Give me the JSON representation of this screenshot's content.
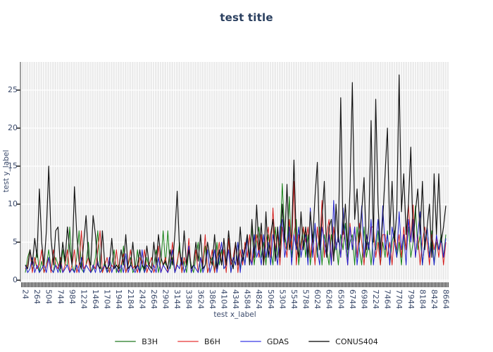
{
  "title": "test title",
  "colors": {
    "paper_bg": "#ffffff",
    "plot_bg": "#ebebeb",
    "grid": "#ffffff",
    "title": "#2a3f5f",
    "tick_label": "#3b4a6b",
    "axis_spine": "#9e9e9e",
    "tick_band_bg": "#c9c9c9",
    "tick_mark": "#4a4a4a"
  },
  "chart_data": {
    "type": "line",
    "title": "test title",
    "xlabel": "test x_label",
    "ylabel": "test y_label",
    "grid": {
      "vertical": true,
      "horizontal": true,
      "style": "white-on-gray"
    },
    "legend_position": "bottom-center",
    "x": {
      "start": 24,
      "step": 48,
      "count": 181
    },
    "x_axis": {
      "tick_start": 24,
      "tick_step": 240,
      "tick_labels": [
        24,
        264,
        504,
        744,
        984,
        1224,
        1464,
        1704,
        1944,
        2184,
        2424,
        2664,
        2904,
        3144,
        3384,
        3624,
        3864,
        4104,
        4344,
        4584,
        4824,
        5064,
        5304,
        5544,
        5784,
        6024,
        6264,
        6504,
        6744,
        6984,
        7224,
        7464,
        7704,
        7944,
        8184,
        8424,
        8664
      ],
      "label_rotation_deg": 90
    },
    "y_axis": {
      "ticks": [
        0,
        5,
        10,
        15,
        20,
        25
      ],
      "range": [
        -0.6,
        28.9
      ]
    },
    "series": [
      {
        "name": "B3H",
        "line_color": "#158015",
        "legend_color": "#74ab74",
        "line_width": 1,
        "values": [
          1,
          3,
          4,
          1.5,
          2,
          4,
          1,
          2.5,
          1,
          2,
          4,
          1.5,
          1,
          3,
          2,
          1,
          4,
          2,
          2,
          7,
          2,
          1,
          3,
          6.5,
          1.5,
          1,
          2,
          5,
          1,
          1.5,
          3,
          6.5,
          2,
          1,
          2.5,
          1,
          1.5,
          2,
          4,
          1,
          2,
          1,
          4.5,
          1,
          2,
          3,
          1,
          1.5,
          4,
          1,
          2,
          1,
          3,
          1.5,
          1,
          2,
          4,
          1,
          2.5,
          6.5,
          2,
          6.5,
          1.5,
          3,
          1,
          2,
          5,
          1,
          2.5,
          1,
          4,
          2,
          1,
          3,
          5,
          1,
          2,
          4.5,
          1,
          2,
          3,
          1,
          5,
          2,
          4,
          1.5,
          2,
          5.5,
          1,
          3,
          2,
          5,
          1.5,
          4,
          2,
          6,
          3,
          7,
          2,
          5,
          7,
          3,
          5,
          2,
          6,
          4,
          2,
          7,
          3,
          5,
          12.7,
          6,
          4,
          11,
          3,
          6,
          8,
          2,
          5,
          7,
          3,
          6,
          2,
          5,
          7,
          3,
          7,
          2,
          6,
          4,
          2,
          6,
          3,
          5,
          2,
          6,
          4,
          7.5,
          3,
          5,
          6,
          2,
          7,
          4,
          2,
          7,
          3,
          5,
          2,
          6,
          4,
          6.5,
          2,
          5,
          3,
          6.5,
          2,
          5,
          6.5,
          3,
          5,
          2,
          6,
          4,
          7,
          3,
          5,
          9.8,
          4,
          6,
          2,
          5,
          7,
          3,
          6.5,
          2,
          5,
          4,
          6,
          3,
          6
        ]
      },
      {
        "name": "B6H",
        "line_color": "#d42020",
        "legend_color": "#f08080",
        "line_width": 1,
        "values": [
          1.5,
          2,
          4,
          1,
          3,
          1.5,
          2,
          4,
          1,
          2,
          3,
          1,
          4,
          2,
          1.5,
          3,
          1,
          2,
          4,
          1,
          2,
          4,
          1,
          2,
          6.5,
          1.5,
          2,
          3,
          1,
          2,
          1.5,
          4,
          6.5,
          1,
          2,
          3,
          1,
          2,
          1.5,
          4,
          1,
          2,
          3.5,
          1,
          2,
          4,
          1.5,
          2,
          1,
          3,
          2,
          4,
          1,
          2,
          3,
          1,
          2,
          4.5,
          1,
          2,
          3,
          1,
          2,
          5,
          1,
          2.5,
          4,
          1,
          3,
          2,
          5.5,
          1,
          2,
          4,
          1,
          3,
          2,
          6,
          1,
          2,
          4,
          1,
          3,
          5,
          2,
          4,
          1,
          5.5,
          2,
          3,
          5,
          1,
          4,
          2,
          5,
          3,
          6,
          2,
          4,
          6,
          3,
          6,
          2,
          5,
          7,
          3,
          9.5,
          4,
          6,
          2,
          7,
          5,
          3,
          8,
          4,
          13,
          2,
          6,
          4,
          7,
          5,
          7,
          3,
          6,
          2,
          7,
          4,
          10.5,
          3,
          6,
          8,
          2,
          7,
          4,
          6,
          3,
          7,
          5,
          2,
          7.5,
          4,
          7,
          3,
          7.5,
          5,
          2,
          6,
          4,
          7,
          7,
          3,
          5,
          2,
          6,
          6,
          3,
          5,
          2,
          6,
          4,
          6,
          3,
          7,
          4,
          10,
          5,
          9.9,
          3,
          6,
          2,
          5,
          7,
          5,
          2,
          6,
          4,
          5.5,
          3,
          5.5,
          2,
          5
        ]
      },
      {
        "name": "GDAS",
        "line_color": "#2020cc",
        "legend_color": "#8383ef",
        "line_width": 1,
        "values": [
          2,
          1,
          1.5,
          3,
          1,
          2,
          1,
          1.5,
          2,
          1,
          3,
          1.5,
          1,
          2,
          1,
          2.5,
          1,
          1.5,
          2,
          1,
          1.5,
          1,
          2,
          1,
          3,
          1,
          2,
          1.5,
          1,
          2,
          1,
          2.5,
          1,
          1.5,
          2,
          1,
          3,
          1,
          2,
          1.5,
          1,
          2,
          1,
          3.5,
          1,
          2,
          1.5,
          1,
          2,
          1,
          4,
          1,
          2,
          1.5,
          1,
          2,
          1,
          3,
          1,
          2,
          1.5,
          1,
          2,
          4,
          1,
          2,
          1.5,
          3,
          1,
          2,
          4.5,
          1,
          2,
          1.5,
          1,
          3,
          1,
          2,
          4,
          1,
          2,
          4,
          1,
          3,
          5,
          1.5,
          2,
          4,
          1,
          3,
          2,
          5,
          1,
          4,
          2,
          5.5,
          3,
          2,
          6,
          3,
          4,
          2,
          6,
          3,
          5,
          2,
          6,
          4,
          2,
          7,
          8,
          3,
          5,
          7,
          2,
          6,
          4,
          7,
          3,
          5,
          6,
          2,
          9.5,
          3,
          7.5,
          4,
          2,
          7,
          5,
          3,
          6,
          2,
          10.5,
          4,
          6,
          3,
          9.5,
          5,
          2,
          7,
          4,
          7,
          2,
          5,
          9.8,
          3,
          6,
          4,
          8,
          2,
          5,
          8,
          3,
          9.8,
          4,
          6,
          2,
          7,
          5,
          3,
          9,
          4,
          6,
          2,
          8,
          5,
          8,
          3,
          6,
          9,
          2,
          5,
          7,
          3,
          5,
          2,
          6,
          4,
          5.5,
          3,
          5.5
        ]
      },
      {
        "name": "CONUS404",
        "line_color": "#161616",
        "legend_color": "#5f5f5f",
        "line_width": 1.2,
        "values": [
          2,
          1.5,
          4,
          2,
          5.5,
          3,
          12,
          5,
          2,
          6.5,
          15,
          5.5,
          2,
          6.5,
          7,
          1.5,
          5,
          2.5,
          7,
          4,
          2,
          12.3,
          6,
          2.5,
          1.5,
          5,
          8.5,
          3,
          2,
          8.5,
          6,
          2,
          1.5,
          6.5,
          2,
          1.5,
          2,
          5.5,
          1.5,
          2,
          1.5,
          4,
          2,
          6,
          1.5,
          2,
          5,
          1.5,
          2,
          4,
          2,
          1.5,
          4.5,
          2,
          1.5,
          5,
          2,
          6,
          3,
          2,
          2.5,
          1.5,
          4,
          2,
          6,
          11.7,
          4,
          2,
          6.5,
          2,
          4,
          1.5,
          2,
          5,
          2.5,
          6,
          1.5,
          2,
          5,
          3,
          2,
          6,
          1.5,
          4,
          2,
          5.5,
          2,
          6.5,
          3,
          1.5,
          5,
          2,
          7,
          2.5,
          4,
          6,
          2,
          8,
          3,
          9.9,
          4,
          7.5,
          2,
          9,
          3,
          6,
          8,
          2.5,
          7,
          3,
          10,
          5,
          12.6,
          4,
          6,
          15.8,
          5,
          3,
          9,
          4,
          7,
          3,
          9,
          5,
          11,
          15.5,
          4,
          8,
          13,
          3,
          7,
          8,
          2.5,
          10,
          5,
          24,
          6,
          10,
          4,
          12,
          26,
          8,
          12,
          5,
          9,
          13.5,
          4,
          7,
          21,
          5,
          23.8,
          10,
          4,
          8,
          14,
          20,
          6,
          13,
          5,
          9,
          27,
          9,
          14,
          6,
          10,
          17.5,
          5,
          9,
          12,
          6,
          13,
          4,
          7,
          10,
          3,
          14,
          6,
          14,
          5,
          7,
          9.8
        ]
      }
    ]
  }
}
